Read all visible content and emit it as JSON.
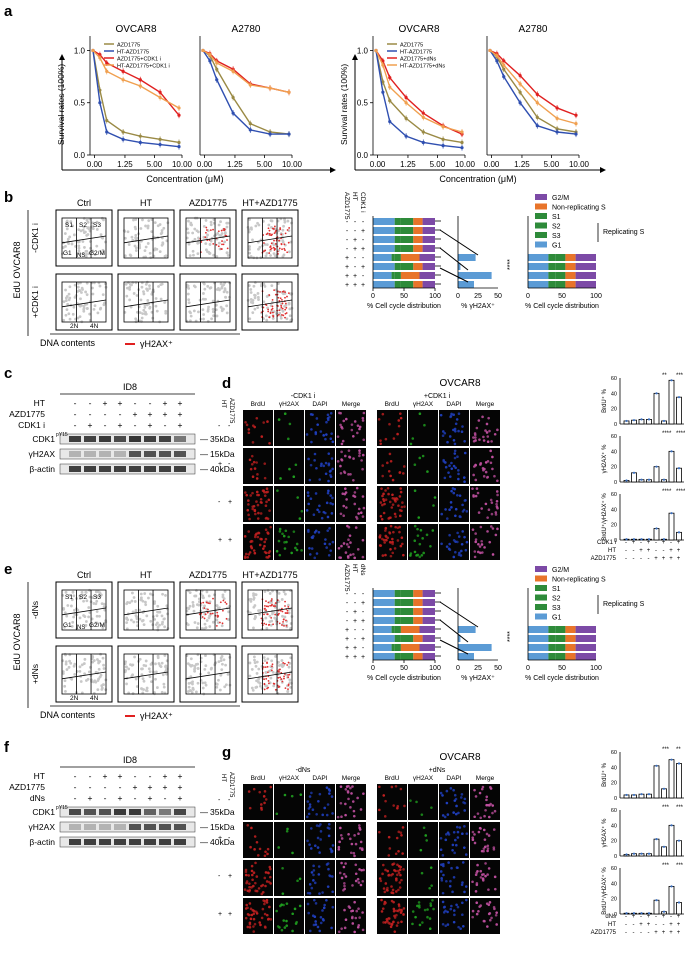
{
  "panels": {
    "a": "a",
    "b": "b",
    "c": "c",
    "d": "d",
    "e": "e",
    "f": "f",
    "g": "g"
  },
  "line_colors": {
    "AZD1775": "#9a8a45",
    "HT-AZD1775": "#2f4fb0",
    "AZD1775+CDK1 i": "#e02020",
    "HT-AZD1775+CDK1 i": "#f0a050",
    "AZD1775+dNs": "#e02020",
    "HT-AZD1775+dNs": "#f0a050"
  },
  "cc_colors": {
    "G2/M": "#7c4aa6",
    "Non-replicating S": "#e8742a",
    "S1": "#2e8b3a",
    "S2": "#2e8b3a",
    "S3": "#2e8b3a",
    "G1": "#5b9bd5"
  },
  "chart_data": [
    {
      "type": "line",
      "title": "OVCAR8",
      "xlabel": "Concentration (μM)",
      "ylabel": "Survival rates (100%)",
      "x": [
        0,
        0.3125,
        0.625,
        1.25,
        2.5,
        5,
        10
      ],
      "xticks": [
        "0.00",
        "1.25",
        "5.00",
        "10.00"
      ],
      "yticks": [
        "0.0",
        "0.5",
        "1.0"
      ],
      "ylim": [
        0,
        1.1
      ],
      "series": [
        {
          "name": "AZD1775",
          "values": [
            1.0,
            0.62,
            0.33,
            0.22,
            0.18,
            0.15,
            0.12
          ]
        },
        {
          "name": "HT-AZD1775",
          "values": [
            1.0,
            0.5,
            0.22,
            0.15,
            0.12,
            0.1,
            0.08
          ]
        },
        {
          "name": "AZD1775+CDK1 i",
          "values": [
            1.0,
            0.96,
            0.88,
            0.8,
            0.72,
            0.6,
            0.38
          ]
        },
        {
          "name": "HT-AZD1775+CDK1 i",
          "values": [
            1.0,
            0.93,
            0.8,
            0.72,
            0.66,
            0.55,
            0.45
          ]
        }
      ]
    },
    {
      "type": "line",
      "title": "A2780",
      "xlabel": "",
      "ylabel": "",
      "x": [
        0,
        0.3125,
        0.625,
        1.25,
        2.5,
        5,
        10
      ],
      "xticks": [
        "0.00",
        "1.25",
        "5.00",
        "10.00"
      ],
      "yticks": [],
      "ylim": [
        0,
        1.1
      ],
      "series": [
        {
          "name": "AZD1775",
          "values": [
            1.0,
            0.95,
            0.82,
            0.55,
            0.3,
            0.22,
            0.2
          ]
        },
        {
          "name": "HT-AZD1775",
          "values": [
            1.0,
            0.9,
            0.72,
            0.4,
            0.24,
            0.2,
            0.2
          ]
        },
        {
          "name": "AZD1775+CDK1 i",
          "values": [
            1.0,
            0.97,
            0.9,
            0.82,
            0.68,
            0.64,
            0.6
          ]
        },
        {
          "name": "HT-AZD1775+CDK1 i",
          "values": [
            1.0,
            0.96,
            0.88,
            0.8,
            0.67,
            0.64,
            0.6
          ]
        }
      ]
    },
    {
      "type": "line",
      "title": "OVCAR8",
      "xlabel": "Concentration (μM)",
      "ylabel": "Survival rates (100%)",
      "x": [
        0,
        0.3125,
        0.625,
        1.25,
        2.5,
        5,
        10
      ],
      "xticks": [
        "0.00",
        "1.25",
        "5.00",
        "10.00"
      ],
      "yticks": [
        "0.0",
        "0.5",
        "1.0"
      ],
      "ylim": [
        0,
        1.1
      ],
      "series": [
        {
          "name": "AZD1775",
          "values": [
            1.0,
            0.7,
            0.52,
            0.35,
            0.22,
            0.15,
            0.12
          ]
        },
        {
          "name": "HT-AZD1775",
          "values": [
            1.0,
            0.6,
            0.32,
            0.18,
            0.12,
            0.09,
            0.07
          ]
        },
        {
          "name": "AZD1775+dNs",
          "values": [
            1.0,
            0.9,
            0.74,
            0.55,
            0.4,
            0.28,
            0.2
          ]
        },
        {
          "name": "HT-AZD1775+dNs",
          "values": [
            1.0,
            0.86,
            0.65,
            0.5,
            0.36,
            0.27,
            0.22
          ]
        }
      ]
    },
    {
      "type": "line",
      "title": "A2780",
      "xlabel": "",
      "ylabel": "",
      "x": [
        0,
        0.3125,
        0.625,
        1.25,
        2.5,
        5,
        10
      ],
      "xticks": [
        "0.00",
        "1.25",
        "5.00",
        "10.00"
      ],
      "yticks": [],
      "ylim": [
        0,
        1.1
      ],
      "series": [
        {
          "name": "AZD1775",
          "values": [
            1.0,
            0.94,
            0.82,
            0.6,
            0.36,
            0.25,
            0.22
          ]
        },
        {
          "name": "HT-AZD1775",
          "values": [
            1.0,
            0.9,
            0.75,
            0.5,
            0.28,
            0.22,
            0.2
          ]
        },
        {
          "name": "AZD1775+dNs",
          "values": [
            1.0,
            0.97,
            0.9,
            0.76,
            0.58,
            0.45,
            0.38
          ]
        },
        {
          "name": "HT-AZD1775+dNs",
          "values": [
            1.0,
            0.95,
            0.86,
            0.68,
            0.5,
            0.35,
            0.3
          ]
        }
      ]
    },
    {
      "type": "bar",
      "title": "",
      "ylabel": "BrdU⁺ %",
      "values": [
        4,
        5,
        6,
        6,
        40,
        4,
        57,
        35
      ]
    },
    {
      "type": "bar",
      "title": "",
      "ylabel": "γH2AX⁺ %",
      "values": [
        2,
        12,
        3,
        3,
        20,
        3,
        40,
        18
      ]
    },
    {
      "type": "bar",
      "title": "",
      "ylabel": "BrdU⁺/γH2AX⁺ %",
      "values": [
        1,
        1,
        1,
        1,
        15,
        1,
        35,
        10
      ]
    },
    {
      "type": "bar",
      "title": "",
      "ylabel": "BrdU⁺ %",
      "values": [
        4,
        4,
        5,
        5,
        42,
        12,
        50,
        45
      ]
    },
    {
      "type": "bar",
      "title": "",
      "ylabel": "γH2AX⁺ %",
      "values": [
        2,
        3,
        3,
        3,
        22,
        12,
        40,
        20
      ]
    },
    {
      "type": "bar",
      "title": "",
      "ylabel": "BrdU⁺/γH2AX⁺ %",
      "values": [
        1,
        1,
        1,
        1,
        18,
        3,
        36,
        15
      ]
    }
  ],
  "a": {
    "xlabel": "Concentration (μM)",
    "ylabel": "Survival rates (100%)",
    "titles": [
      "OVCAR8",
      "A2780",
      "OVCAR8",
      "A2780"
    ]
  },
  "b": {
    "cols": [
      "Ctrl",
      "HT",
      "AZD1775",
      "HT+AZD1775"
    ],
    "rows": [
      "-CDK1 i",
      "+CDK1 i"
    ],
    "cell_line": "OVCAR8",
    "edu": "EdU",
    "gates": [
      "S1",
      "S2",
      "S3",
      "G1",
      "NS",
      "G2/M"
    ],
    "dna": [
      "2N",
      "4N"
    ],
    "dna_label": "DNA contents",
    "legend": "γH2AX⁺",
    "treat_labels": [
      "AZD1775",
      "HT",
      "CDK1 i"
    ],
    "pct_cc": "% Cell cycle distribution",
    "pct_h2ax": "% γH2AX⁺",
    "leg": [
      "G2/M",
      "Non-replicating S",
      "S1",
      "S2",
      "S3",
      "G1"
    ],
    "replicating": "Replicating S",
    "ticks": [
      "0",
      "50",
      "100"
    ],
    "ticks_h": [
      "0",
      "25",
      "50"
    ],
    "stars": "****"
  },
  "c": {
    "title": "ID8",
    "rows": [
      "HT",
      "AZD1775",
      "CDK1 i"
    ],
    "blots": [
      "CDK1",
      "γH2AX",
      "β-actin"
    ],
    "cdk_sup": "pY15",
    "kda": [
      "35kDa",
      "15kDa",
      "40kDa"
    ]
  },
  "d": {
    "title": "OVCAR8",
    "groups": [
      "-CDK1 i",
      "+CDK1 i"
    ],
    "cols": [
      "BrdU",
      "γH2AX",
      "DAPI",
      "Merge"
    ],
    "treat": [
      "AZD1775",
      "HT"
    ],
    "bar_labels": [
      "CDK1 i",
      "HT",
      "AZD1775"
    ],
    "sig": [
      "**",
      "***",
      "****",
      "****",
      "****",
      "****"
    ]
  },
  "e": {
    "rows": [
      "-dNs",
      "+dNs"
    ],
    "treat_labels": [
      "AZD1775",
      "HT",
      "dNs"
    ]
  },
  "f": {
    "title": "ID8",
    "rows": [
      "HT",
      "AZD1775",
      "dNs"
    ]
  },
  "g": {
    "title": "OVCAR8",
    "groups": [
      "-dNs",
      "+dNs"
    ],
    "bar_labels": [
      "dNs",
      "HT",
      "AZD1775"
    ],
    "sig": [
      "***",
      "**",
      "***",
      "***",
      "***",
      "***"
    ]
  },
  "scale_ticks": [
    "0",
    "20",
    "40",
    "60"
  ],
  "signs": {
    "minus": "-",
    "plus": "+"
  }
}
